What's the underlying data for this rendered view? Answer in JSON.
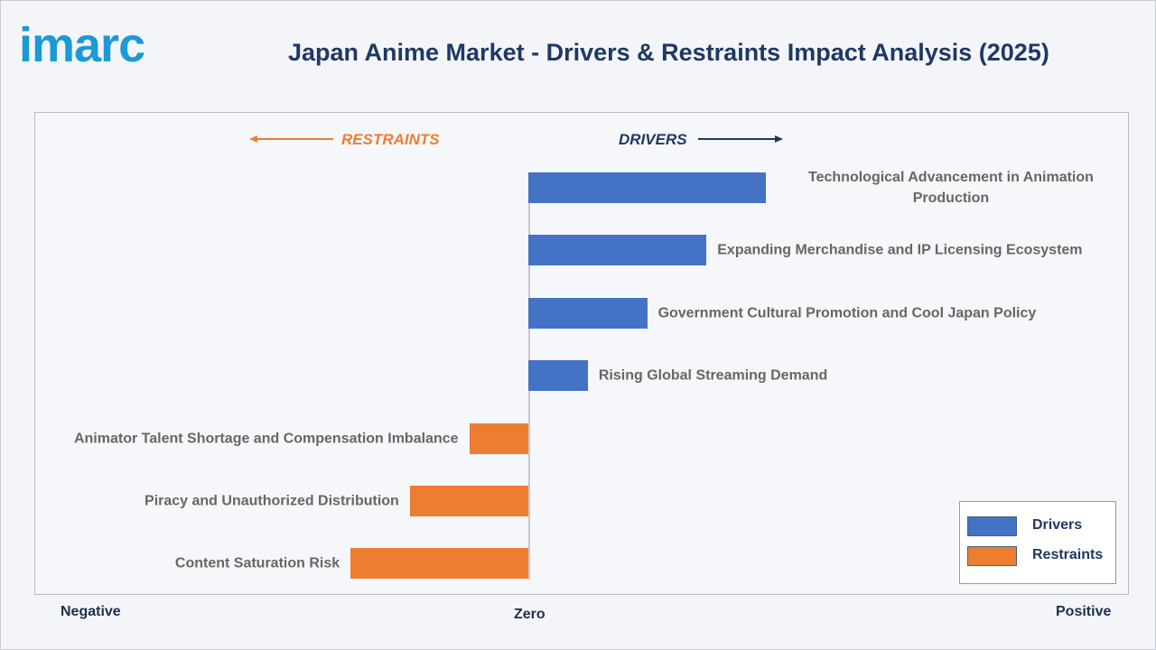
{
  "logo": "imarc",
  "chart_data": {
    "type": "diverging_bar",
    "title": "Japan Anime Market - Drivers & Restraints Impact Analysis (2025)",
    "left_heading": "RESTRAINTS",
    "right_heading": "DRIVERS",
    "x_axis_labels": [
      "Negative",
      "Zero",
      "Positive"
    ],
    "categories": [
      "Technological Advancement in Animation Production",
      "Expanding Merchandise and IP Licensing Ecosystem",
      "Government Cultural Promotion and Cool Japan Policy",
      "Rising Global Streaming Demand",
      "Animator Talent Shortage and Compensation Imbalance",
      "Piracy and Unauthorized Distribution",
      "Content Saturation Risk"
    ],
    "series": [
      {
        "name": "Drivers",
        "color": "#4472c4",
        "values": [
          4,
          3,
          2,
          1,
          null,
          null,
          null
        ]
      },
      {
        "name": "Restraints",
        "color": "#ed7d31",
        "values": [
          null,
          null,
          null,
          null,
          -1,
          -2,
          -3
        ]
      }
    ],
    "xlim": [
      -8.33,
      10.09
    ],
    "legend": "lower right"
  }
}
